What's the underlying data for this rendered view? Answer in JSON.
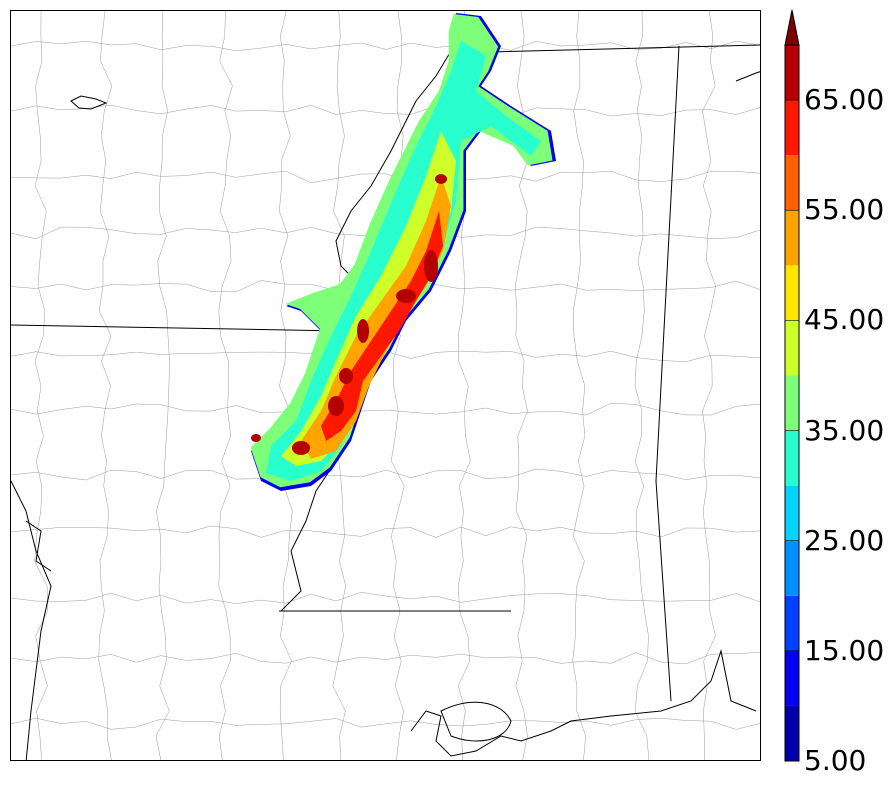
{
  "colorbar": {
    "bins": [
      {
        "from": 5,
        "to": 10,
        "color": "#0000aa"
      },
      {
        "from": 10,
        "to": 15,
        "color": "#0000ee"
      },
      {
        "from": 15,
        "to": 20,
        "color": "#0040ff"
      },
      {
        "from": 20,
        "to": 25,
        "color": "#0090ff"
      },
      {
        "from": 25,
        "to": 30,
        "color": "#00d4ff"
      },
      {
        "from": 30,
        "to": 35,
        "color": "#29ffce"
      },
      {
        "from": 35,
        "to": 40,
        "color": "#7dff7a"
      },
      {
        "from": 40,
        "to": 45,
        "color": "#ceff29"
      },
      {
        "from": 45,
        "to": 50,
        "color": "#ffe600"
      },
      {
        "from": 50,
        "to": 55,
        "color": "#ffa400"
      },
      {
        "from": 55,
        "to": 60,
        "color": "#ff6000"
      },
      {
        "from": 60,
        "to": 65,
        "color": "#ff1800"
      },
      {
        "from": 65,
        "to": 70,
        "color": "#b40000"
      }
    ],
    "extend_color": "#7f0000",
    "extend": "max",
    "tick_labels": [
      "5.00",
      "15.00",
      "25.00",
      "35.00",
      "45.00",
      "55.00",
      "65.00"
    ]
  },
  "map": {
    "field_colors": {
      "edge": "#0000ee",
      "light": "#29ffce",
      "mid": "#7dff7a",
      "yellow": "#ceff29",
      "orange": "#ffa400",
      "red": "#ff1800",
      "core": "#b40000"
    },
    "boundary_color": "#000000",
    "county_color": "#9a9a9a"
  }
}
